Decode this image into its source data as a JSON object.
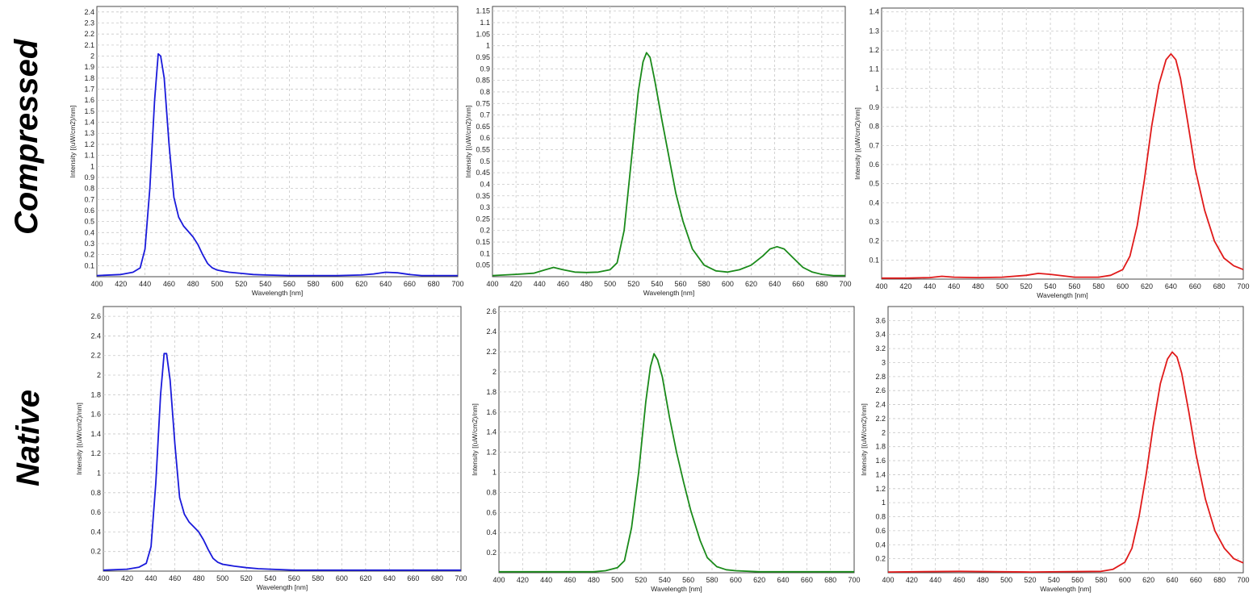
{
  "row_labels": {
    "compressed": "Compressed",
    "native": "Native"
  },
  "chart_data": [
    {
      "id": "compressed-blue",
      "type": "line",
      "row": "Compressed",
      "color": "#1a1adb",
      "xlabel": "Wavelength [nm]",
      "ylabel": "Intensity [(uW/cm2)/nm]",
      "xlim": [
        400,
        700
      ],
      "ylim": [
        0,
        2.45
      ],
      "xticks": [
        400,
        420,
        440,
        460,
        480,
        500,
        520,
        540,
        560,
        580,
        600,
        620,
        640,
        660,
        680,
        700
      ],
      "xtick_labels": [
        "400",
        "420",
        "440",
        "460",
        "480",
        "500",
        "520",
        "540",
        "560",
        "580",
        "600",
        "620",
        "640",
        "660",
        "680",
        "700"
      ],
      "yticks": [
        0.1,
        0.2,
        0.3,
        0.4,
        0.5,
        0.6,
        0.7,
        0.8,
        0.9,
        1,
        1.1,
        1.2,
        1.3,
        1.4,
        1.5,
        1.6,
        1.7,
        1.8,
        1.9,
        2,
        2.1,
        2.2,
        2.3,
        2.4
      ],
      "ytick_labels": [
        "0.1",
        "0.2",
        "0.3",
        "0.4",
        "0.5",
        "0.6",
        "0.7",
        "0.8",
        "0.9",
        "1",
        "1.1",
        "1.2",
        "1.3",
        "1.4",
        "1.5",
        "1.6",
        "1.7",
        "1.8",
        "1.9",
        "2",
        "2.1",
        "2.2",
        "2.3",
        "2.4"
      ],
      "series": [
        {
          "x": [
            400,
            420,
            430,
            436,
            440,
            444,
            448,
            451,
            453,
            456,
            460,
            464,
            468,
            472,
            476,
            480,
            484,
            488,
            492,
            496,
            500,
            505,
            510,
            520,
            530,
            540,
            560,
            580,
            600,
            620,
            630,
            640,
            650,
            660,
            670,
            680,
            700
          ],
          "y": [
            0.01,
            0.02,
            0.04,
            0.08,
            0.25,
            0.8,
            1.6,
            2.02,
            2.0,
            1.8,
            1.2,
            0.72,
            0.54,
            0.46,
            0.41,
            0.36,
            0.29,
            0.2,
            0.12,
            0.08,
            0.06,
            0.05,
            0.04,
            0.03,
            0.02,
            0.015,
            0.01,
            0.01,
            0.01,
            0.015,
            0.025,
            0.04,
            0.035,
            0.02,
            0.01,
            0.01,
            0.01
          ]
        }
      ]
    },
    {
      "id": "compressed-green",
      "type": "line",
      "row": "Compressed",
      "color": "#1a8a1a",
      "xlabel": "Wavelength [nm]",
      "ylabel": "Intensity [(uW/cm2)/nm]",
      "xlim": [
        400,
        700
      ],
      "ylim": [
        0,
        1.17
      ],
      "xticks": [
        400,
        420,
        440,
        460,
        480,
        500,
        520,
        540,
        560,
        580,
        600,
        620,
        640,
        660,
        680,
        700
      ],
      "xtick_labels": [
        "400",
        "420",
        "440",
        "460",
        "480",
        "500",
        "520",
        "540",
        "560",
        "580",
        "600",
        "620",
        "640",
        "660",
        "680",
        "700"
      ],
      "yticks": [
        0.05,
        0.1,
        0.15,
        0.2,
        0.25,
        0.3,
        0.35,
        0.4,
        0.45,
        0.5,
        0.55,
        0.6,
        0.65,
        0.7,
        0.75,
        0.8,
        0.85,
        0.9,
        0.95,
        1,
        1.05,
        1.1,
        1.15
      ],
      "ytick_labels": [
        "0.05",
        "0.1",
        "0.15",
        "0.2",
        "0.25",
        "0.3",
        "0.35",
        "0.4",
        "0.45",
        "0.5",
        "0.55",
        "0.6",
        "0.65",
        "0.7",
        "0.75",
        "0.8",
        "0.85",
        "0.9",
        "0.95",
        "1",
        "1.05",
        "1.1",
        "1.15"
      ],
      "series": [
        {
          "x": [
            400,
            420,
            435,
            445,
            452,
            460,
            470,
            480,
            490,
            500,
            506,
            512,
            518,
            524,
            528,
            531,
            534,
            538,
            544,
            550,
            556,
            562,
            570,
            580,
            590,
            600,
            610,
            620,
            630,
            636,
            642,
            648,
            656,
            664,
            672,
            680,
            690,
            700
          ],
          "y": [
            0.005,
            0.01,
            0.015,
            0.03,
            0.04,
            0.03,
            0.02,
            0.018,
            0.02,
            0.03,
            0.06,
            0.2,
            0.5,
            0.8,
            0.93,
            0.97,
            0.95,
            0.85,
            0.68,
            0.52,
            0.36,
            0.24,
            0.12,
            0.05,
            0.025,
            0.02,
            0.03,
            0.05,
            0.09,
            0.12,
            0.13,
            0.12,
            0.08,
            0.04,
            0.02,
            0.01,
            0.005,
            0.005
          ]
        }
      ]
    },
    {
      "id": "compressed-red",
      "type": "line",
      "row": "Compressed",
      "color": "#e01a1a",
      "xlabel": "Wavelength [nm]",
      "ylabel": "Intensity [(uW/cm2)/nm]",
      "xlim": [
        400,
        700
      ],
      "ylim": [
        0,
        1.42
      ],
      "xticks": [
        400,
        420,
        440,
        460,
        480,
        500,
        520,
        540,
        560,
        580,
        600,
        620,
        640,
        660,
        680,
        700
      ],
      "xtick_labels": [
        "400",
        "420",
        "440",
        "460",
        "480",
        "500",
        "520",
        "540",
        "560",
        "580",
        "600",
        "620",
        "640",
        "660",
        "680",
        "700"
      ],
      "yticks": [
        0.1,
        0.2,
        0.3,
        0.4,
        0.5,
        0.6,
        0.7,
        0.8,
        0.9,
        1,
        1.1,
        1.2,
        1.3,
        1.4
      ],
      "ytick_labels": [
        "0.1",
        "0.2",
        "0.3",
        "0.4",
        "0.5",
        "0.6",
        "0.7",
        "0.8",
        "0.9",
        "1",
        "1.1",
        "1.2",
        "1.3",
        "1.4"
      ],
      "series": [
        {
          "x": [
            400,
            420,
            440,
            450,
            460,
            480,
            500,
            520,
            530,
            540,
            560,
            580,
            590,
            600,
            606,
            612,
            618,
            624,
            630,
            636,
            640,
            644,
            648,
            654,
            660,
            668,
            676,
            684,
            692,
            700
          ],
          "y": [
            0.005,
            0.005,
            0.008,
            0.015,
            0.01,
            0.008,
            0.01,
            0.02,
            0.03,
            0.025,
            0.01,
            0.01,
            0.02,
            0.05,
            0.12,
            0.28,
            0.52,
            0.8,
            1.02,
            1.15,
            1.18,
            1.15,
            1.05,
            0.82,
            0.58,
            0.36,
            0.2,
            0.11,
            0.07,
            0.05
          ]
        }
      ]
    },
    {
      "id": "native-blue",
      "type": "line",
      "row": "Native",
      "color": "#1a1adb",
      "xlabel": "Wavelength [nm]",
      "ylabel": "Intensity [(uW/cm2)/nm]",
      "xlim": [
        400,
        700
      ],
      "ylim": [
        0,
        2.7
      ],
      "xticks": [
        400,
        420,
        440,
        460,
        480,
        500,
        520,
        540,
        560,
        580,
        600,
        620,
        640,
        660,
        680,
        700
      ],
      "xtick_labels": [
        "400",
        "420",
        "440",
        "460",
        "480",
        "500",
        "520",
        "540",
        "560",
        "580",
        "600",
        "620",
        "640",
        "660",
        "680",
        "700"
      ],
      "yticks": [
        0.2,
        0.4,
        0.6,
        0.8,
        1,
        1.2,
        1.4,
        1.6,
        1.8,
        2,
        2.2,
        2.4,
        2.6
      ],
      "ytick_labels": [
        "0.2",
        "0.4",
        "0.6",
        "0.8",
        "1",
        "1.2",
        "1.4",
        "1.6",
        "1.8",
        "2",
        "2.2",
        "2.4",
        "2.6"
      ],
      "series": [
        {
          "x": [
            400,
            420,
            430,
            436,
            440,
            444,
            448,
            451,
            453,
            456,
            460,
            464,
            468,
            472,
            476,
            480,
            484,
            488,
            492,
            496,
            500,
            505,
            510,
            520,
            530,
            540,
            560,
            580,
            600,
            620,
            640,
            660,
            680,
            700
          ],
          "y": [
            0.01,
            0.02,
            0.04,
            0.08,
            0.25,
            0.9,
            1.8,
            2.22,
            2.22,
            1.95,
            1.3,
            0.75,
            0.58,
            0.5,
            0.45,
            0.4,
            0.32,
            0.22,
            0.13,
            0.09,
            0.07,
            0.06,
            0.05,
            0.035,
            0.025,
            0.02,
            0.01,
            0.01,
            0.01,
            0.01,
            0.01,
            0.01,
            0.01,
            0.01
          ]
        }
      ]
    },
    {
      "id": "native-green",
      "type": "line",
      "row": "Native",
      "color": "#1a8a1a",
      "xlabel": "Wavelength [nm]",
      "ylabel": "Intensity [(uW/cm2)/nm]",
      "xlim": [
        400,
        700
      ],
      "ylim": [
        0,
        2.65
      ],
      "xticks": [
        400,
        420,
        440,
        460,
        480,
        500,
        520,
        540,
        560,
        580,
        600,
        620,
        640,
        660,
        680,
        700
      ],
      "xtick_labels": [
        "400",
        "420",
        "440",
        "460",
        "480",
        "500",
        "520",
        "540",
        "560",
        "580",
        "600",
        "620",
        "640",
        "660",
        "680",
        "700"
      ],
      "yticks": [
        0.2,
        0.4,
        0.6,
        0.8,
        1,
        1.2,
        1.4,
        1.6,
        1.8,
        2,
        2.2,
        2.4,
        2.6
      ],
      "ytick_labels": [
        "0.2",
        "0.4",
        "0.6",
        "0.8",
        "1",
        "1.2",
        "1.4",
        "1.6",
        "1.8",
        "2",
        "2.2",
        "2.4",
        "2.6"
      ],
      "series": [
        {
          "x": [
            400,
            440,
            480,
            490,
            500,
            506,
            512,
            518,
            524,
            528,
            531,
            534,
            538,
            544,
            550,
            556,
            562,
            570,
            576,
            584,
            592,
            600,
            620,
            660,
            700
          ],
          "y": [
            0.01,
            0.01,
            0.01,
            0.02,
            0.05,
            0.12,
            0.45,
            1.0,
            1.7,
            2.05,
            2.18,
            2.12,
            1.95,
            1.55,
            1.2,
            0.9,
            0.62,
            0.32,
            0.15,
            0.06,
            0.03,
            0.02,
            0.01,
            0.01,
            0.01
          ]
        }
      ]
    },
    {
      "id": "native-red",
      "type": "line",
      "row": "Native",
      "color": "#e01a1a",
      "xlabel": "Wavelength [nm]",
      "ylabel": "Intensity [(uW/cm2)/nm]",
      "xlim": [
        400,
        700
      ],
      "ylim": [
        0,
        3.8
      ],
      "xticks": [
        400,
        420,
        440,
        460,
        480,
        500,
        520,
        540,
        560,
        580,
        600,
        620,
        640,
        660,
        680,
        700
      ],
      "xtick_labels": [
        "400",
        "420",
        "440",
        "460",
        "480",
        "500",
        "520",
        "540",
        "560",
        "580",
        "600",
        "620",
        "640",
        "660",
        "680",
        "700"
      ],
      "yticks": [
        0.2,
        0.4,
        0.6,
        0.8,
        1,
        1.2,
        1.4,
        1.6,
        1.8,
        2,
        2.2,
        2.4,
        2.6,
        2.8,
        3,
        3.2,
        3.4,
        3.6
      ],
      "ytick_labels": [
        "0.2",
        "0.4",
        "0.6",
        "0.8",
        "1",
        "1.2",
        "1.4",
        "1.6",
        "1.8",
        "2",
        "2.2",
        "2.4",
        "2.6",
        "2.8",
        "3",
        "3.2",
        "3.4",
        "3.6"
      ],
      "series": [
        {
          "x": [
            400,
            460,
            520,
            580,
            590,
            600,
            606,
            612,
            618,
            624,
            630,
            636,
            640,
            644,
            648,
            654,
            660,
            668,
            676,
            684,
            692,
            700
          ],
          "y": [
            0.01,
            0.02,
            0.01,
            0.02,
            0.05,
            0.15,
            0.35,
            0.8,
            1.4,
            2.1,
            2.7,
            3.05,
            3.15,
            3.08,
            2.85,
            2.3,
            1.7,
            1.05,
            0.6,
            0.35,
            0.2,
            0.14
          ]
        }
      ]
    }
  ]
}
